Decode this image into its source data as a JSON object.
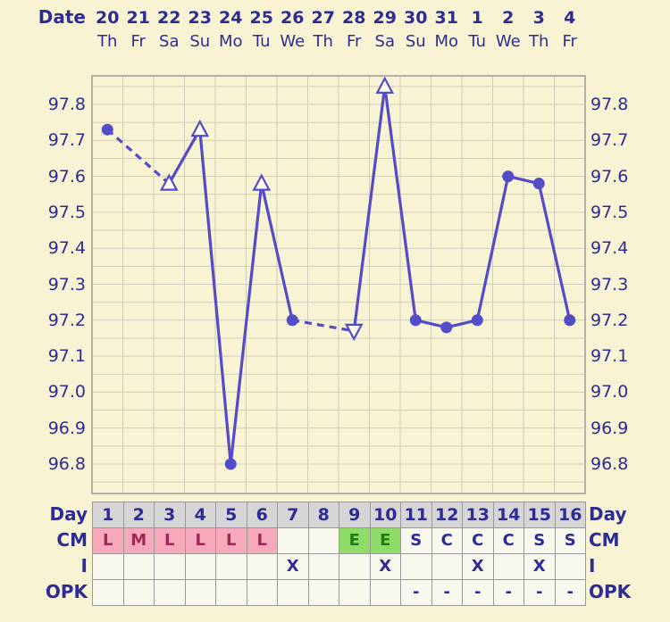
{
  "colors": {
    "background": "#f8f3d3",
    "text_navy": "#2c2c94",
    "line": "#534bc8",
    "grid": "#d1cdbb",
    "chart_border": "#9a9a9a",
    "day_row_bg": "#d6d6d6",
    "menses_bg": "#f5a9ba",
    "menses_text": "#a02858",
    "egg_bg": "#8fdb67",
    "egg_text": "#1d7d12",
    "cell_bg": "#f9f8ef",
    "cell_border": "#999999"
  },
  "header": {
    "date_label": "Date",
    "dates": [
      "20",
      "21",
      "22",
      "23",
      "24",
      "25",
      "26",
      "27",
      "28",
      "29",
      "30",
      "31",
      "1",
      "2",
      "3",
      "4"
    ],
    "weekdays": [
      "Th",
      "Fr",
      "Sa",
      "Su",
      "Mo",
      "Tu",
      "We",
      "Th",
      "Fr",
      "Sa",
      "Su",
      "Mo",
      "Tu",
      "We",
      "Th",
      "Fr"
    ]
  },
  "chart_data": {
    "type": "line",
    "series_name": "basal-body-temperature",
    "y_ticks": [
      "97.8",
      "97.7",
      "97.6",
      "97.5",
      "97.4",
      "97.3",
      "97.2",
      "97.1",
      "97.0",
      "96.9",
      "96.8"
    ],
    "ylim": [
      96.72,
      97.88
    ],
    "grid": true,
    "points": [
      {
        "day": 1,
        "date": "20",
        "temp": 97.73,
        "marker": "circle"
      },
      {
        "day": 2,
        "date": "21",
        "temp": null,
        "marker": "none"
      },
      {
        "day": 3,
        "date": "22",
        "temp": 97.58,
        "marker": "triangle-up"
      },
      {
        "day": 4,
        "date": "23",
        "temp": 97.73,
        "marker": "triangle-up"
      },
      {
        "day": 5,
        "date": "24",
        "temp": 96.8,
        "marker": "circle"
      },
      {
        "day": 6,
        "date": "25",
        "temp": 97.58,
        "marker": "triangle-up"
      },
      {
        "day": 7,
        "date": "26",
        "temp": 97.2,
        "marker": "circle"
      },
      {
        "day": 8,
        "date": "27",
        "temp": null,
        "marker": "none"
      },
      {
        "day": 9,
        "date": "28",
        "temp": 97.17,
        "marker": "triangle-down"
      },
      {
        "day": 10,
        "date": "29",
        "temp": 97.85,
        "marker": "triangle-up"
      },
      {
        "day": 11,
        "date": "30",
        "temp": 97.2,
        "marker": "circle"
      },
      {
        "day": 12,
        "date": "31",
        "temp": 97.18,
        "marker": "circle"
      },
      {
        "day": 13,
        "date": "1",
        "temp": 97.2,
        "marker": "circle"
      },
      {
        "day": 14,
        "date": "2",
        "temp": 97.6,
        "marker": "circle"
      },
      {
        "day": 15,
        "date": "3",
        "temp": 97.58,
        "marker": "circle"
      },
      {
        "day": 16,
        "date": "4",
        "temp": 97.2,
        "marker": "circle"
      }
    ]
  },
  "table": {
    "rows": [
      {
        "label": "Day",
        "values": [
          "1",
          "2",
          "3",
          "4",
          "5",
          "6",
          "7",
          "8",
          "9",
          "10",
          "11",
          "12",
          "13",
          "14",
          "15",
          "16"
        ]
      },
      {
        "label": "CM",
        "values": [
          "L",
          "M",
          "L",
          "L",
          "L",
          "L",
          "",
          "",
          "E",
          "E",
          "S",
          "C",
          "C",
          "C",
          "S",
          "S"
        ]
      },
      {
        "label": "I",
        "values": [
          "",
          "",
          "",
          "",
          "",
          "",
          "X",
          "",
          "",
          "X",
          "",
          "",
          "X",
          "",
          "X",
          ""
        ]
      },
      {
        "label": "OPK",
        "values": [
          "",
          "",
          "",
          "",
          "",
          "",
          "",
          "",
          "",
          "",
          "-",
          "-",
          "-",
          "-",
          "-",
          "-"
        ]
      }
    ]
  }
}
